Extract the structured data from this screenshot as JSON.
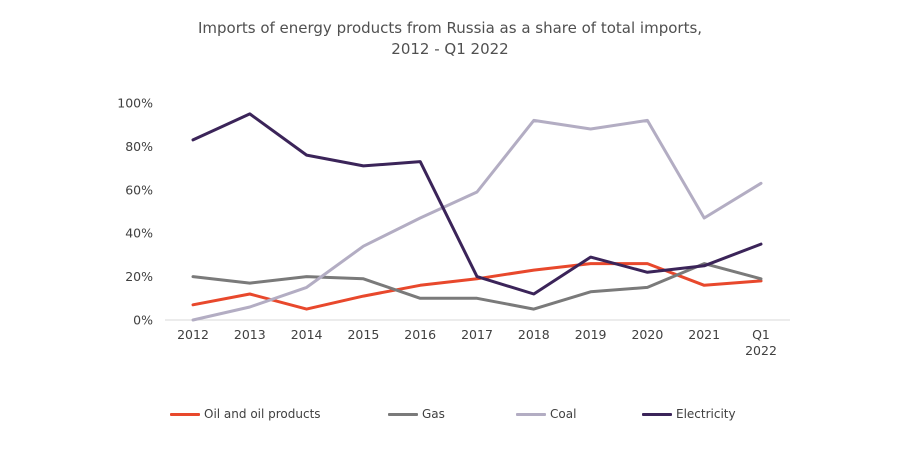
{
  "title_lines": [
    "Imports of energy products from Russia as a share of total imports,",
    "2012 - Q1 2022"
  ],
  "chart_data": {
    "type": "line",
    "title": "Imports of energy products from Russia as a share of total imports, 2012 - Q1 2022",
    "categories": [
      "2012",
      "2013",
      "2014",
      "2015",
      "2016",
      "2017",
      "2018",
      "2019",
      "2020",
      "2021",
      [
        "Q1",
        "2022"
      ]
    ],
    "ylim": [
      0,
      100
    ],
    "yticks": [
      "0%",
      "20%",
      "40%",
      "60%",
      "80%",
      "100%"
    ],
    "grid": false,
    "legend_position": "bottom",
    "series": [
      {
        "name": "Oil and oil products",
        "color": "#e8482c",
        "values": [
          7,
          12,
          5,
          11,
          16,
          19,
          23,
          26,
          26,
          16,
          18
        ]
      },
      {
        "name": "Gas",
        "color": "#7a7a7a",
        "values": [
          20,
          17,
          20,
          19,
          10,
          10,
          5,
          13,
          15,
          26,
          19
        ]
      },
      {
        "name": "Coal",
        "color": "#b3adc3",
        "values": [
          0,
          6,
          15,
          34,
          47,
          59,
          92,
          88,
          92,
          47,
          63
        ]
      },
      {
        "name": "Electricity",
        "color": "#3b2459",
        "values": [
          83,
          95,
          76,
          71,
          73,
          20,
          12,
          29,
          22,
          25,
          35
        ]
      }
    ]
  }
}
